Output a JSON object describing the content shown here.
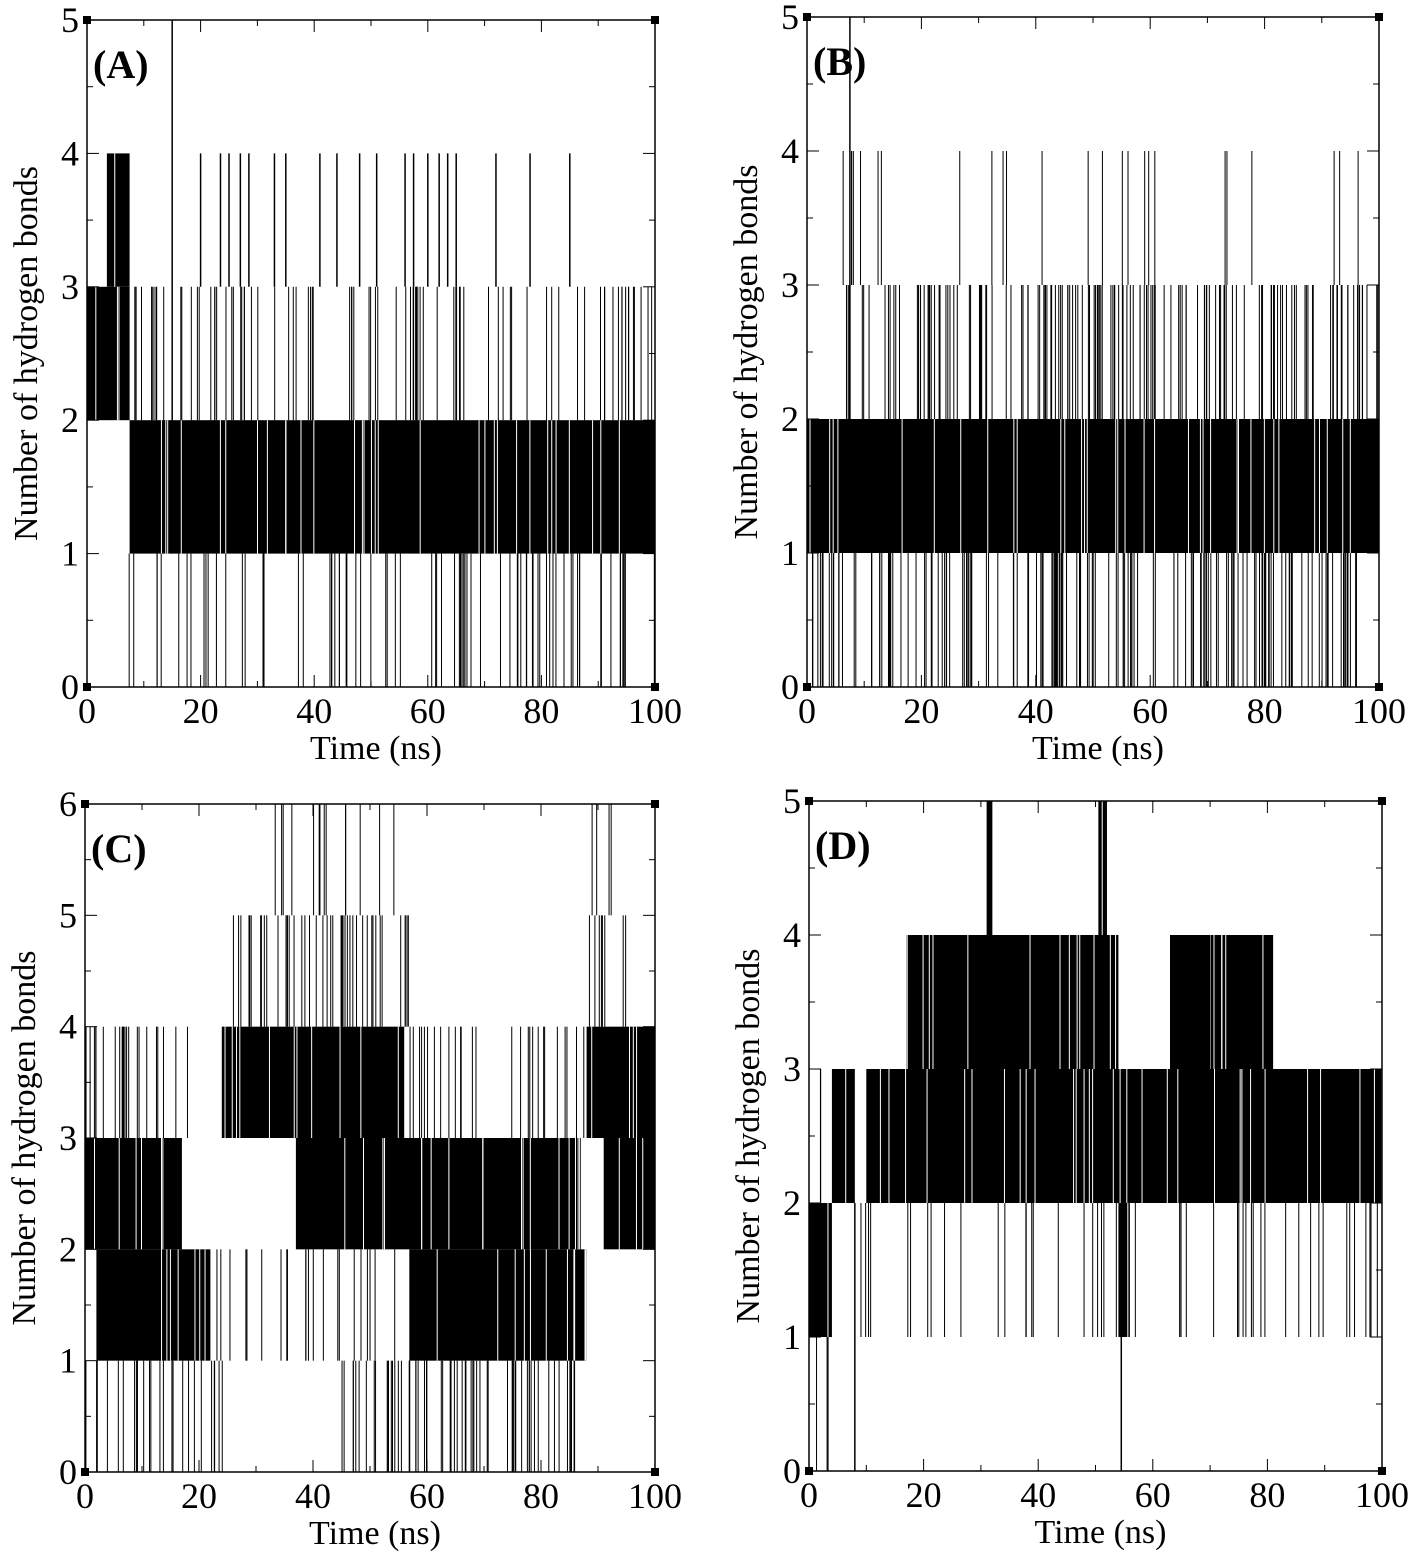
{
  "chart_data": [
    {
      "type": "line",
      "panel_label": "(A)",
      "xlabel": "Time (ns)",
      "ylabel": "Number of hydrogen bonds",
      "xlim": [
        0,
        100
      ],
      "ylim": [
        0,
        5
      ],
      "xticks": [
        0,
        20,
        40,
        60,
        80,
        100
      ],
      "yticks": [
        0,
        1,
        2,
        3,
        4,
        5
      ],
      "grid": false,
      "series": [
        {
          "color": "#000000",
          "dense_bands": [
            {
              "x": [
                0,
                7.5
              ],
              "y": [
                2,
                3
              ]
            },
            {
              "x": [
                3.5,
                7.5
              ],
              "y": [
                3,
                4
              ]
            },
            {
              "x": [
                7.5,
                100
              ],
              "y": [
                1,
                2
              ]
            }
          ],
          "spikes": [
            {
              "x": 15,
              "y": [
                1,
                5
              ]
            },
            {
              "x": 20,
              "y": [
                3,
                4
              ]
            },
            {
              "x": 23.5,
              "y": [
                3,
                4
              ]
            },
            {
              "x": 25,
              "y": [
                3,
                4
              ]
            },
            {
              "x": 27,
              "y": [
                3,
                4
              ]
            },
            {
              "x": 28.5,
              "y": [
                3,
                4
              ]
            },
            {
              "x": 33,
              "y": [
                3,
                4
              ]
            },
            {
              "x": 35,
              "y": [
                3,
                4
              ]
            },
            {
              "x": 41,
              "y": [
                3,
                4
              ]
            },
            {
              "x": 44,
              "y": [
                3,
                4
              ]
            },
            {
              "x": 48,
              "y": [
                3,
                4
              ]
            },
            {
              "x": 51,
              "y": [
                3,
                4
              ]
            },
            {
              "x": 56,
              "y": [
                3,
                4
              ]
            },
            {
              "x": 57.5,
              "y": [
                3,
                4
              ]
            },
            {
              "x": 60,
              "y": [
                3,
                4
              ]
            },
            {
              "x": 62,
              "y": [
                3,
                4
              ]
            },
            {
              "x": 63.5,
              "y": [
                3,
                4
              ]
            },
            {
              "x": 65,
              "y": [
                3,
                4
              ]
            },
            {
              "x": 72,
              "y": [
                3,
                4
              ]
            },
            {
              "x": 78,
              "y": [
                3,
                4
              ]
            },
            {
              "x": 85,
              "y": [
                3,
                4
              ]
            }
          ],
          "upper_activity": [
            {
              "x": [
                7.5,
                40
              ],
              "y": [
                2,
                3
              ],
              "density": 0.5
            },
            {
              "x": [
                45,
                65
              ],
              "y": [
                2,
                3
              ],
              "density": 0.5
            },
            {
              "x": [
                65,
                88
              ],
              "y": [
                2,
                3
              ],
              "density": 0.3
            },
            {
              "x": [
                88,
                100
              ],
              "y": [
                2,
                3
              ],
              "density": 0.55
            }
          ],
          "lower_activity": [
            {
              "x": [
                7,
                100
              ],
              "y": [
                0,
                1
              ],
              "density": 0.4
            }
          ]
        }
      ]
    },
    {
      "type": "line",
      "panel_label": "(B)",
      "xlabel": "Time (ns)",
      "ylabel": "Number of hydrogen bonds",
      "xlim": [
        0,
        100
      ],
      "ylim": [
        0,
        5
      ],
      "xticks": [
        0,
        20,
        40,
        60,
        80,
        100
      ],
      "yticks": [
        0,
        1,
        2,
        3,
        4,
        5
      ],
      "grid": false,
      "series": [
        {
          "color": "#000000",
          "dense_bands": [
            {
              "x": [
                0,
                100
              ],
              "y": [
                1,
                2
              ]
            }
          ],
          "spikes": [
            {
              "x": 7.5,
              "y": [
                1,
                5
              ]
            }
          ],
          "upper_activity": [
            {
              "x": [
                4,
                100
              ],
              "y": [
                2,
                3
              ],
              "density": 0.75
            },
            {
              "x": [
                3,
                97
              ],
              "y": [
                3,
                4
              ],
              "density": 0.12
            }
          ],
          "lower_activity": [
            {
              "x": [
                0.5,
                97
              ],
              "y": [
                0,
                1
              ],
              "density": 0.75
            }
          ]
        }
      ]
    },
    {
      "type": "line",
      "panel_label": "(C)",
      "xlabel": "Time (ns)",
      "ylabel": "Number of hydrogen bonds",
      "xlim": [
        0,
        100
      ],
      "ylim": [
        0,
        6
      ],
      "xticks": [
        0,
        20,
        40,
        60,
        80,
        100
      ],
      "yticks": [
        0,
        1,
        2,
        3,
        4,
        5,
        6
      ],
      "grid": false,
      "series": [
        {
          "color": "#000000",
          "dense_bands": [
            {
              "x": [
                0,
                17
              ],
              "y": [
                2,
                3
              ]
            },
            {
              "x": [
                2,
                22
              ],
              "y": [
                1,
                2
              ]
            },
            {
              "x": [
                24,
                56
              ],
              "y": [
                3,
                4
              ]
            },
            {
              "x": [
                37,
                87
              ],
              "y": [
                2,
                3
              ]
            },
            {
              "x": [
                57,
                88
              ],
              "y": [
                1,
                2
              ]
            },
            {
              "x": [
                88,
                100
              ],
              "y": [
                3,
                4
              ]
            },
            {
              "x": [
                91,
                100
              ],
              "y": [
                2,
                3
              ]
            }
          ],
          "spikes": [],
          "upper_activity": [
            {
              "x": [
                0,
                24
              ],
              "y": [
                3,
                4
              ],
              "density": 0.45
            },
            {
              "x": [
                26,
                57
              ],
              "y": [
                4,
                5
              ],
              "density": 0.65
            },
            {
              "x": [
                30,
                56
              ],
              "y": [
                5,
                6
              ],
              "density": 0.25
            },
            {
              "x": [
                57,
                88
              ],
              "y": [
                3,
                4
              ],
              "density": 0.4
            },
            {
              "x": [
                88,
                95
              ],
              "y": [
                4,
                5
              ],
              "density": 0.5
            },
            {
              "x": [
                88,
                93
              ],
              "y": [
                5,
                6
              ],
              "density": 0.4
            }
          ],
          "lower_activity": [
            {
              "x": [
                0,
                26
              ],
              "y": [
                0,
                1
              ],
              "density": 0.45
            },
            {
              "x": [
                45,
                88
              ],
              "y": [
                0,
                1
              ],
              "density": 0.7
            },
            {
              "x": [
                22,
                57
              ],
              "y": [
                1,
                2
              ],
              "density": 0.3
            }
          ]
        }
      ]
    },
    {
      "type": "line",
      "panel_label": "(D)",
      "xlabel": "Time (ns)",
      "ylabel": "Number of hydrogen bonds",
      "xlim": [
        0,
        100
      ],
      "ylim": [
        0,
        5
      ],
      "xticks": [
        0,
        20,
        40,
        60,
        80,
        100
      ],
      "yticks": [
        0,
        1,
        2,
        3,
        4,
        5
      ],
      "grid": false,
      "series": [
        {
          "color": "#000000",
          "dense_bands": [
            {
              "x": [
                0,
                4
              ],
              "y": [
                1,
                2
              ]
            },
            {
              "x": [
                4,
                8
              ],
              "y": [
                2,
                3
              ]
            },
            {
              "x": [
                10,
                100
              ],
              "y": [
                2,
                3
              ]
            },
            {
              "x": [
                17,
                54
              ],
              "y": [
                3,
                4
              ]
            },
            {
              "x": [
                63,
                81
              ],
              "y": [
                3,
                4
              ]
            },
            {
              "x": [
                54,
                56
              ],
              "y": [
                1,
                2
              ]
            },
            {
              "x": [
                31,
                32
              ],
              "y": [
                4,
                5
              ]
            },
            {
              "x": [
                50.5,
                52
              ],
              "y": [
                4,
                5
              ]
            }
          ],
          "spikes": [
            {
              "x": 8,
              "y": [
                0,
                2
              ]
            },
            {
              "x": 54.5,
              "y": [
                0,
                2
              ]
            }
          ],
          "upper_activity": [
            {
              "x": [
                63,
                81
              ],
              "y": [
                3,
                4
              ],
              "density": 0.3
            },
            {
              "x": [
                1,
                3
              ],
              "y": [
                2,
                3
              ],
              "density": 0.5
            }
          ],
          "lower_activity": [
            {
              "x": [
                1,
                4
              ],
              "y": [
                0,
                1
              ],
              "density": 0.4
            },
            {
              "x": [
                8,
                11
              ],
              "y": [
                1,
                2
              ],
              "density": 0.6
            },
            {
              "x": [
                16,
                100
              ],
              "y": [
                1,
                2
              ],
              "density": 0.25
            }
          ]
        }
      ]
    }
  ]
}
